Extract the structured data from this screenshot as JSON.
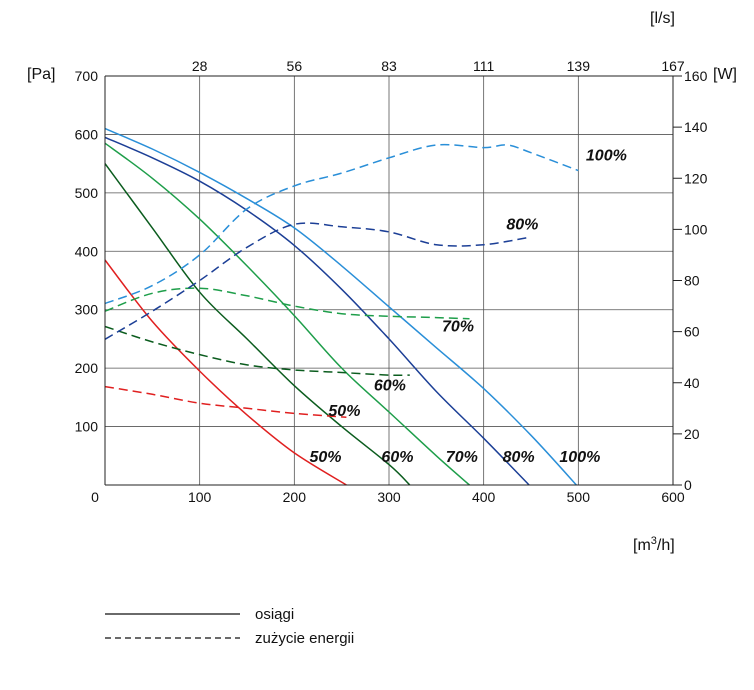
{
  "chart_data": {
    "type": "line",
    "x_unit": "[m³/h]",
    "x_unit_base": "[m",
    "x_unit_sup": "3",
    "x_unit_end": "/h]",
    "x_ticks": [
      0,
      100,
      200,
      300,
      400,
      500,
      600
    ],
    "x_range": [
      0,
      600
    ],
    "top_unit": "[l/s]",
    "top_ticks": [
      {
        "label": "28",
        "at": 100
      },
      {
        "label": "56",
        "at": 200
      },
      {
        "label": "83",
        "at": 300
      },
      {
        "label": "111",
        "at": 400
      },
      {
        "label": "139",
        "at": 500
      },
      {
        "label": "167",
        "at": 600
      }
    ],
    "y_left_unit": "[Pa]",
    "y_left_ticks": [
      100,
      200,
      300,
      400,
      500,
      600,
      700
    ],
    "y_left_range": [
      0,
      700
    ],
    "y_right_unit": "[W]",
    "y_right_ticks": [
      0,
      20,
      40,
      60,
      80,
      100,
      120,
      140,
      160
    ],
    "y_right_range": [
      0,
      160
    ],
    "grid": true,
    "series": [
      {
        "name": "50%",
        "kind": "performance",
        "axis": "left",
        "color": "#e02020",
        "x": [
          0,
          50,
          100,
          150,
          200,
          255
        ],
        "y": [
          385,
          280,
          195,
          120,
          55,
          0
        ]
      },
      {
        "name": "60%",
        "kind": "performance",
        "axis": "left",
        "color": "#0b5c1e",
        "x": [
          0,
          50,
          100,
          150,
          200,
          250,
          300,
          322
        ],
        "y": [
          550,
          440,
          330,
          250,
          170,
          100,
          35,
          0
        ]
      },
      {
        "name": "70%",
        "kind": "performance",
        "axis": "left",
        "color": "#1e9e4a",
        "x": [
          0,
          50,
          100,
          150,
          200,
          250,
          300,
          350,
          385
        ],
        "y": [
          585,
          525,
          455,
          375,
          290,
          200,
          125,
          50,
          0
        ]
      },
      {
        "name": "80%",
        "kind": "performance",
        "axis": "left",
        "color": "#1c3f96",
        "x": [
          0,
          50,
          100,
          150,
          200,
          250,
          300,
          350,
          400,
          448
        ],
        "y": [
          595,
          560,
          520,
          470,
          410,
          335,
          250,
          160,
          80,
          0
        ]
      },
      {
        "name": "100%",
        "kind": "performance",
        "axis": "left",
        "color": "#2a8fd8",
        "x": [
          0,
          50,
          100,
          150,
          200,
          250,
          300,
          350,
          400,
          450,
          498
        ],
        "y": [
          610,
          575,
          535,
          490,
          440,
          375,
          305,
          235,
          165,
          85,
          0
        ]
      },
      {
        "name": "50%",
        "kind": "energy",
        "axis": "right",
        "color": "#e02020",
        "x": [
          0,
          50,
          100,
          150,
          200,
          255
        ],
        "y": [
          38.5,
          35.5,
          32,
          30,
          28,
          26.5
        ]
      },
      {
        "name": "60%",
        "kind": "energy",
        "axis": "right",
        "color": "#0b5c1e",
        "x": [
          0,
          50,
          100,
          150,
          200,
          250,
          300,
          322
        ],
        "y": [
          62,
          56,
          51,
          47,
          45,
          44,
          43,
          43
        ]
      },
      {
        "name": "70%",
        "kind": "energy",
        "axis": "right",
        "color": "#1e9e4a",
        "x": [
          0,
          50,
          100,
          150,
          200,
          250,
          300,
          350,
          385
        ],
        "y": [
          68,
          75,
          77,
          74,
          70,
          67,
          66,
          65.5,
          65
        ]
      },
      {
        "name": "80%",
        "kind": "energy",
        "axis": "right",
        "color": "#1c3f96",
        "x": [
          0,
          50,
          100,
          150,
          200,
          250,
          300,
          350,
          400,
          450
        ],
        "y": [
          57,
          68,
          80,
          93,
          102,
          101,
          99,
          94,
          94,
          97
        ]
      },
      {
        "name": "100%",
        "kind": "energy",
        "axis": "right",
        "color": "#2a8fd8",
        "x": [
          0,
          50,
          100,
          150,
          200,
          250,
          300,
          350,
          400,
          425,
          450,
          500
        ],
        "y": [
          71,
          78,
          90,
          108,
          117,
          122,
          128,
          133,
          132,
          133,
          130,
          123
        ]
      }
    ],
    "labels": [
      {
        "text": "50%",
        "x": 216,
        "y": 9
      },
      {
        "text": "60%",
        "x": 292,
        "y": 9
      },
      {
        "text": "70%",
        "x": 360,
        "y": 9
      },
      {
        "text": "80%",
        "x": 420,
        "y": 9
      },
      {
        "text": "100%",
        "x": 480,
        "y": 9
      },
      {
        "text": "50%",
        "x": 236,
        "y": 27
      },
      {
        "text": "60%",
        "x": 284,
        "y": 37
      },
      {
        "text": "70%",
        "x": 356,
        "y": 60
      },
      {
        "text": "80%",
        "x": 424,
        "y": 100
      },
      {
        "text": "100%",
        "x": 508,
        "y": 127
      }
    ]
  },
  "legend": {
    "solid_label": "osiągi",
    "dashed_label": "zużycie energii"
  }
}
